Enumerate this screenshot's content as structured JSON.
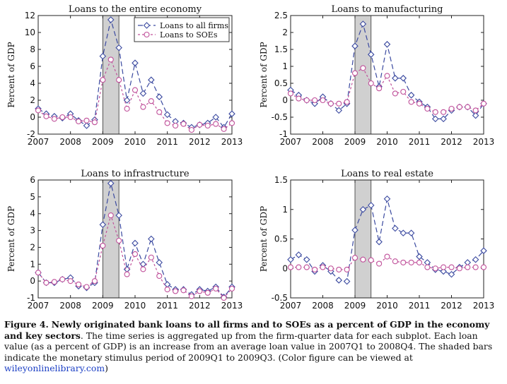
{
  "chart_data": [
    {
      "type": "line",
      "title": "Loans to the entire economy",
      "ylabel": "Percent of GDP",
      "xlim": [
        2007,
        2013
      ],
      "ylim": [
        -2,
        12
      ],
      "yticks": [
        -2,
        0,
        2,
        4,
        6,
        8,
        10,
        12
      ],
      "ytick_labels": [
        "-2",
        "0",
        "2",
        "4",
        "6",
        "8",
        "10",
        "12"
      ],
      "xticks": [
        2007,
        2008,
        2009,
        2010,
        2011,
        2012,
        2013
      ],
      "xtick_labels": [
        "2007",
        "2008",
        "2009",
        "2010",
        "2011",
        "2012",
        "2013"
      ],
      "shaded_period": [
        2009.0,
        2009.5
      ],
      "legend": {
        "position": "top-right",
        "entries": [
          "Loans to all firms",
          "Loans to SOEs"
        ]
      },
      "x": [
        2007.0,
        2007.25,
        2007.5,
        2007.75,
        2008.0,
        2008.25,
        2008.5,
        2008.75,
        2009.0,
        2009.25,
        2009.5,
        2009.75,
        2010.0,
        2010.25,
        2010.5,
        2010.75,
        2011.0,
        2011.25,
        2011.5,
        2011.75,
        2012.0,
        2012.25,
        2012.5,
        2012.75,
        2013.0
      ],
      "series": [
        {
          "name": "Loans to all firms",
          "marker": "diamond",
          "values": [
            1.0,
            0.4,
            0.1,
            -0.1,
            0.4,
            -0.4,
            -1.0,
            -0.3,
            7.2,
            11.5,
            8.2,
            2.0,
            6.4,
            2.8,
            4.4,
            2.4,
            0.3,
            -0.5,
            -0.7,
            -1.2,
            -0.9,
            -0.7,
            0.0,
            -1.2,
            0.4
          ]
        },
        {
          "name": "Loans to SOEs",
          "marker": "circle",
          "values": [
            0.8,
            0.1,
            -0.2,
            0.0,
            0.0,
            -0.5,
            -0.4,
            -0.6,
            4.4,
            6.8,
            4.4,
            1.0,
            3.2,
            1.2,
            1.9,
            0.6,
            -0.7,
            -1.0,
            -0.8,
            -1.5,
            -0.9,
            -1.0,
            -0.8,
            -1.4,
            -0.7
          ]
        }
      ]
    },
    {
      "type": "line",
      "title": "Loans to manufacturing",
      "ylabel": "Percent of GDP",
      "xlim": [
        2007,
        2013
      ],
      "ylim": [
        -1,
        2.5
      ],
      "yticks": [
        -1,
        -0.5,
        0,
        0.5,
        1,
        1.5,
        2,
        2.5
      ],
      "ytick_labels": [
        "-1",
        "-0.5",
        "0",
        "0.5",
        "1",
        "1.5",
        "2",
        "2.5"
      ],
      "xticks": [
        2007,
        2008,
        2009,
        2010,
        2011,
        2012,
        2013
      ],
      "xtick_labels": [
        "2007",
        "2008",
        "2009",
        "2010",
        "2011",
        "2012",
        "2013"
      ],
      "shaded_period": [
        2009.0,
        2009.5
      ],
      "x": [
        2007.0,
        2007.25,
        2007.5,
        2007.75,
        2008.0,
        2008.25,
        2008.5,
        2008.75,
        2009.0,
        2009.25,
        2009.5,
        2009.75,
        2010.0,
        2010.25,
        2010.5,
        2010.75,
        2011.0,
        2011.25,
        2011.5,
        2011.75,
        2012.0,
        2012.25,
        2012.5,
        2012.75,
        2013.0
      ],
      "series": [
        {
          "name": "Loans to all firms",
          "marker": "diamond",
          "values": [
            0.3,
            0.15,
            0.0,
            -0.1,
            0.1,
            -0.1,
            -0.3,
            -0.1,
            1.6,
            2.25,
            1.35,
            0.4,
            1.65,
            0.65,
            0.65,
            0.15,
            -0.05,
            -0.2,
            -0.55,
            -0.55,
            -0.3,
            -0.2,
            -0.2,
            -0.45,
            -0.1
          ]
        },
        {
          "name": "Loans to SOEs",
          "marker": "circle",
          "values": [
            0.2,
            0.05,
            0.0,
            0.0,
            0.0,
            -0.1,
            -0.1,
            -0.05,
            0.8,
            0.95,
            0.5,
            0.35,
            0.72,
            0.2,
            0.25,
            -0.05,
            -0.1,
            -0.25,
            -0.35,
            -0.35,
            -0.25,
            -0.2,
            -0.2,
            -0.3,
            -0.1
          ]
        }
      ]
    },
    {
      "type": "line",
      "title": "Loans to infrastructure",
      "ylabel": "Percent of GDP",
      "xlim": [
        2007,
        2013
      ],
      "ylim": [
        -1,
        6
      ],
      "yticks": [
        -1,
        0,
        1,
        2,
        3,
        4,
        5,
        6
      ],
      "ytick_labels": [
        "-1",
        "0",
        "1",
        "2",
        "3",
        "4",
        "5",
        "6"
      ],
      "xticks": [
        2007,
        2008,
        2009,
        2010,
        2011,
        2012,
        2013
      ],
      "xtick_labels": [
        "2007",
        "2008",
        "2009",
        "2010",
        "2011",
        "2012",
        "2013"
      ],
      "shaded_period": [
        2009.0,
        2009.5
      ],
      "x": [
        2007.0,
        2007.25,
        2007.5,
        2007.75,
        2008.0,
        2008.25,
        2008.5,
        2008.75,
        2009.0,
        2009.25,
        2009.5,
        2009.75,
        2010.0,
        2010.25,
        2010.5,
        2010.75,
        2011.0,
        2011.25,
        2011.5,
        2011.75,
        2012.0,
        2012.25,
        2012.5,
        2012.75,
        2013.0
      ],
      "series": [
        {
          "name": "Loans to all firms",
          "marker": "diamond",
          "values": [
            0.5,
            -0.1,
            -0.1,
            0.1,
            0.2,
            -0.3,
            -0.4,
            -0.1,
            3.35,
            5.8,
            3.9,
            0.7,
            2.25,
            1.0,
            2.5,
            1.1,
            -0.2,
            -0.5,
            -0.5,
            -0.8,
            -0.5,
            -0.6,
            -0.35,
            -0.95,
            -0.35
          ]
        },
        {
          "name": "Loans to SOEs",
          "marker": "circle",
          "values": [
            0.5,
            -0.1,
            -0.05,
            0.1,
            0.0,
            -0.2,
            -0.35,
            0.0,
            2.1,
            3.9,
            2.4,
            0.4,
            1.6,
            0.7,
            1.4,
            0.3,
            -0.5,
            -0.6,
            -0.55,
            -0.9,
            -0.6,
            -0.7,
            -0.45,
            -1.0,
            -0.45
          ]
        }
      ]
    },
    {
      "type": "line",
      "title": "Loans to real estate",
      "ylabel": "Percent of GDP",
      "xlim": [
        2007,
        2013
      ],
      "ylim": [
        -0.5,
        1.5
      ],
      "yticks": [
        -0.5,
        0,
        0.5,
        1,
        1.5
      ],
      "ytick_labels": [
        "-0.5",
        "0",
        "0.5",
        "1",
        "1.5"
      ],
      "xticks": [
        2007,
        2008,
        2009,
        2010,
        2011,
        2012,
        2013
      ],
      "xtick_labels": [
        "2007",
        "2008",
        "2009",
        "2010",
        "2011",
        "2012",
        "2013"
      ],
      "shaded_period": [
        2009.0,
        2009.5
      ],
      "x": [
        2007.0,
        2007.25,
        2007.5,
        2007.75,
        2008.0,
        2008.25,
        2008.5,
        2008.75,
        2009.0,
        2009.25,
        2009.5,
        2009.75,
        2010.0,
        2010.25,
        2010.5,
        2010.75,
        2011.0,
        2011.25,
        2011.5,
        2011.75,
        2012.0,
        2012.25,
        2012.5,
        2012.75,
        2013.0
      ],
      "series": [
        {
          "name": "Loans to all firms",
          "marker": "diamond",
          "values": [
            0.15,
            0.23,
            0.15,
            -0.05,
            0.05,
            -0.05,
            -0.2,
            -0.22,
            0.65,
            1.0,
            1.07,
            0.45,
            1.18,
            0.68,
            0.6,
            0.6,
            0.2,
            0.1,
            -0.02,
            -0.05,
            -0.1,
            0.02,
            0.1,
            0.15,
            0.3
          ]
        },
        {
          "name": "Loans to SOEs",
          "marker": "circle",
          "values": [
            0.02,
            0.02,
            0.02,
            -0.02,
            0.02,
            0.0,
            -0.02,
            -0.02,
            0.18,
            0.15,
            0.14,
            0.08,
            0.2,
            0.12,
            0.1,
            0.1,
            0.1,
            0.02,
            0.0,
            0.02,
            0.02,
            0.0,
            0.02,
            0.02,
            0.02
          ]
        }
      ]
    }
  ],
  "colors": {
    "all_firms": "#3b4aa0",
    "soes": "#c0509a",
    "shade": "#d0d0d0",
    "link": "#1a3ec4"
  },
  "caption": {
    "figure_label": "Figure 4.",
    "bold_text": "Newly originated bank loans to all firms and to SOEs as a percent of GDP in the economy and key sectors",
    "body_text": ". The time series is aggregated up from the firm-quarter data for each subplot. Each loan value (as a percent of GDP) is an increase from an average loan value in 2007Q1 to 2008Q4. The shaded bars indicate the monetary stimulus period of 2009Q1 to 2009Q3. (Color figure can be viewed at ",
    "link_text": "wileyonlinelibrary.com",
    "closing_text": ")"
  }
}
